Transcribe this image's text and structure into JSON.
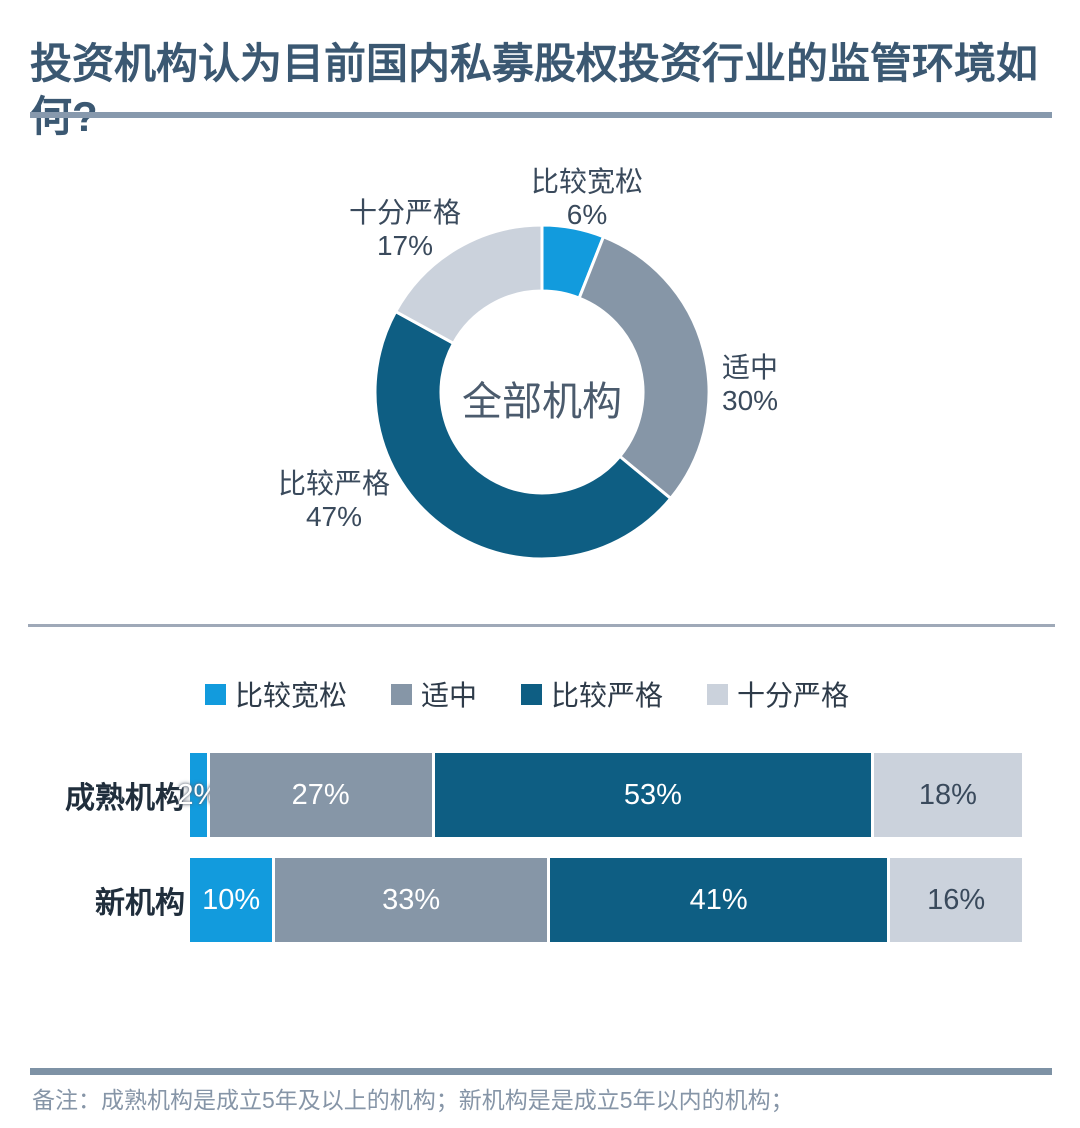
{
  "page": {
    "title": "投资机构认为目前国内私募股权投资行业的监管环境如何?"
  },
  "chart_data": [
    {
      "type": "pie",
      "variant": "donut",
      "center_label": "全部机构",
      "start_angle_deg": 0,
      "direction": "clockwise",
      "labels": [
        "比较宽松",
        "适中",
        "比较严格",
        "十分严格"
      ],
      "values": [
        6,
        30,
        47,
        17
      ],
      "display_values": [
        "6%",
        "30%",
        "47%",
        "17%"
      ],
      "colors": [
        "#129bdd",
        "#8696a7",
        "#0e5e83",
        "#cbd2dc"
      ]
    },
    {
      "type": "bar",
      "variant": "horizontal_stacked",
      "categories": [
        "成熟机构",
        "新机构"
      ],
      "series": [
        {
          "name": "比较宽松",
          "color": "#129bdd",
          "values": [
            2,
            10
          ]
        },
        {
          "name": "适中",
          "color": "#8696a7",
          "values": [
            27,
            33
          ]
        },
        {
          "name": "比较严格",
          "color": "#0e5e83",
          "values": [
            53,
            41
          ]
        },
        {
          "name": "十分严格",
          "color": "#cbd2dc",
          "values": [
            18,
            16
          ]
        }
      ],
      "value_suffix": "%",
      "xlim": [
        0,
        100
      ],
      "legend_position": "top",
      "grid": false
    }
  ],
  "note": "备注：成熟机构是成立5年及以上的机构；新机构是是成立5年以内的机构；"
}
